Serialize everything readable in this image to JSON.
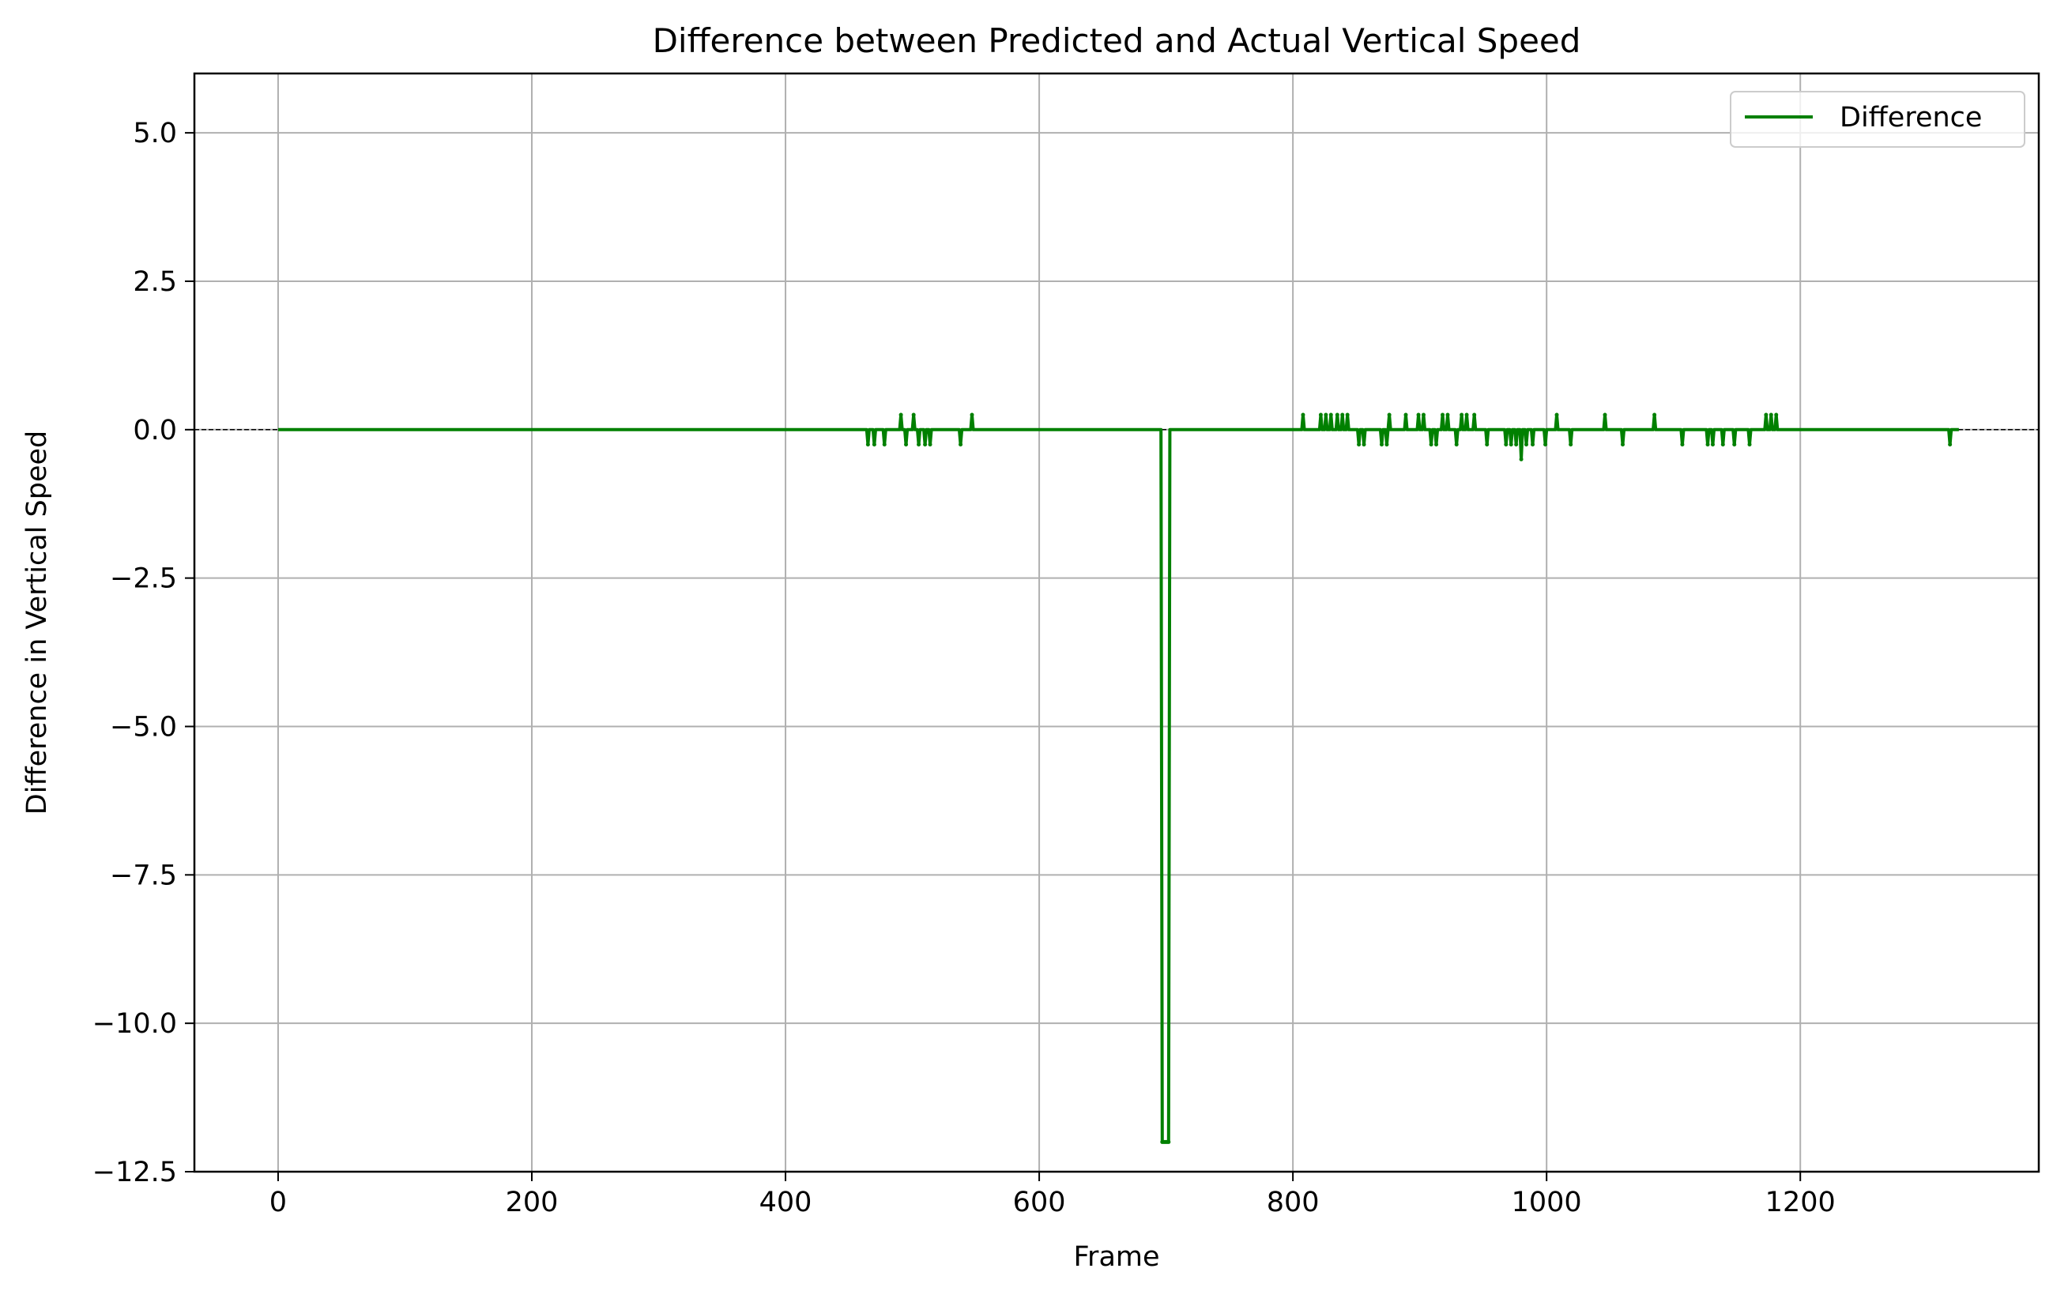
{
  "chart_data": {
    "type": "line",
    "title": "Difference between Predicted and Actual Vertical Speed",
    "xlabel": "Frame",
    "ylabel": "Difference in Vertical Speed",
    "xlim": [
      -66,
      1388
    ],
    "ylim": [
      -12.5,
      6.0
    ],
    "xticks": [
      0,
      200,
      400,
      600,
      800,
      1000,
      1200
    ],
    "yticks": [
      5.0,
      2.5,
      0.0,
      -2.5,
      -5.0,
      -7.5,
      -10.0,
      -12.5
    ],
    "xtick_labels": [
      "0",
      "200",
      "400",
      "600",
      "800",
      "1000",
      "1200"
    ],
    "ytick_labels": [
      "5.0",
      "2.5",
      "0.0",
      "−2.5",
      "−5.0",
      "−7.5",
      "−10.0",
      "−12.5"
    ],
    "grid": true,
    "reference_line": {
      "y": 0.0,
      "style": "dashed",
      "color": "#000000"
    },
    "legend": {
      "position": "top-right",
      "entries": [
        "Difference"
      ]
    },
    "colors": {
      "series": "#008000",
      "grid": "#b0b0b0"
    },
    "series": [
      {
        "name": "Difference",
        "default_value": 0.0,
        "x_range": [
          0,
          1325
        ],
        "nonzero_points": [
          [
            465,
            -0.25
          ],
          [
            470,
            -0.25
          ],
          [
            478,
            -0.25
          ],
          [
            491,
            0.25
          ],
          [
            495,
            -0.25
          ],
          [
            501,
            0.25
          ],
          [
            505,
            -0.25
          ],
          [
            510,
            -0.25
          ],
          [
            514,
            -0.25
          ],
          [
            538,
            -0.25
          ],
          [
            547,
            0.25
          ],
          [
            697,
            -12.0
          ],
          [
            698,
            -12.0
          ],
          [
            699,
            -12.0
          ],
          [
            700,
            -12.0
          ],
          [
            701,
            -12.0
          ],
          [
            702,
            -12.0
          ],
          [
            808,
            0.25
          ],
          [
            822,
            0.25
          ],
          [
            826,
            0.25
          ],
          [
            830,
            0.25
          ],
          [
            835,
            0.25
          ],
          [
            839,
            0.25
          ],
          [
            843,
            0.25
          ],
          [
            852,
            -0.25
          ],
          [
            856,
            -0.25
          ],
          [
            870,
            -0.25
          ],
          [
            874,
            -0.25
          ],
          [
            876,
            0.25
          ],
          [
            889,
            0.25
          ],
          [
            899,
            0.25
          ],
          [
            903,
            0.25
          ],
          [
            909,
            -0.25
          ],
          [
            913,
            -0.25
          ],
          [
            918,
            0.25
          ],
          [
            922,
            0.25
          ],
          [
            929,
            -0.25
          ],
          [
            933,
            0.25
          ],
          [
            937,
            0.25
          ],
          [
            943,
            0.25
          ],
          [
            953,
            -0.25
          ],
          [
            968,
            -0.25
          ],
          [
            972,
            -0.25
          ],
          [
            976,
            -0.25
          ],
          [
            980,
            -0.5
          ],
          [
            984,
            -0.25
          ],
          [
            989,
            -0.25
          ],
          [
            999,
            -0.25
          ],
          [
            1008,
            0.25
          ],
          [
            1019,
            -0.25
          ],
          [
            1046,
            0.25
          ],
          [
            1060,
            -0.25
          ],
          [
            1085,
            0.25
          ],
          [
            1107,
            -0.25
          ],
          [
            1127,
            -0.25
          ],
          [
            1131,
            -0.25
          ],
          [
            1139,
            -0.25
          ],
          [
            1148,
            -0.25
          ],
          [
            1160,
            -0.25
          ],
          [
            1173,
            0.25
          ],
          [
            1177,
            0.25
          ],
          [
            1181,
            0.25
          ],
          [
            1318,
            -0.25
          ]
        ]
      }
    ]
  }
}
